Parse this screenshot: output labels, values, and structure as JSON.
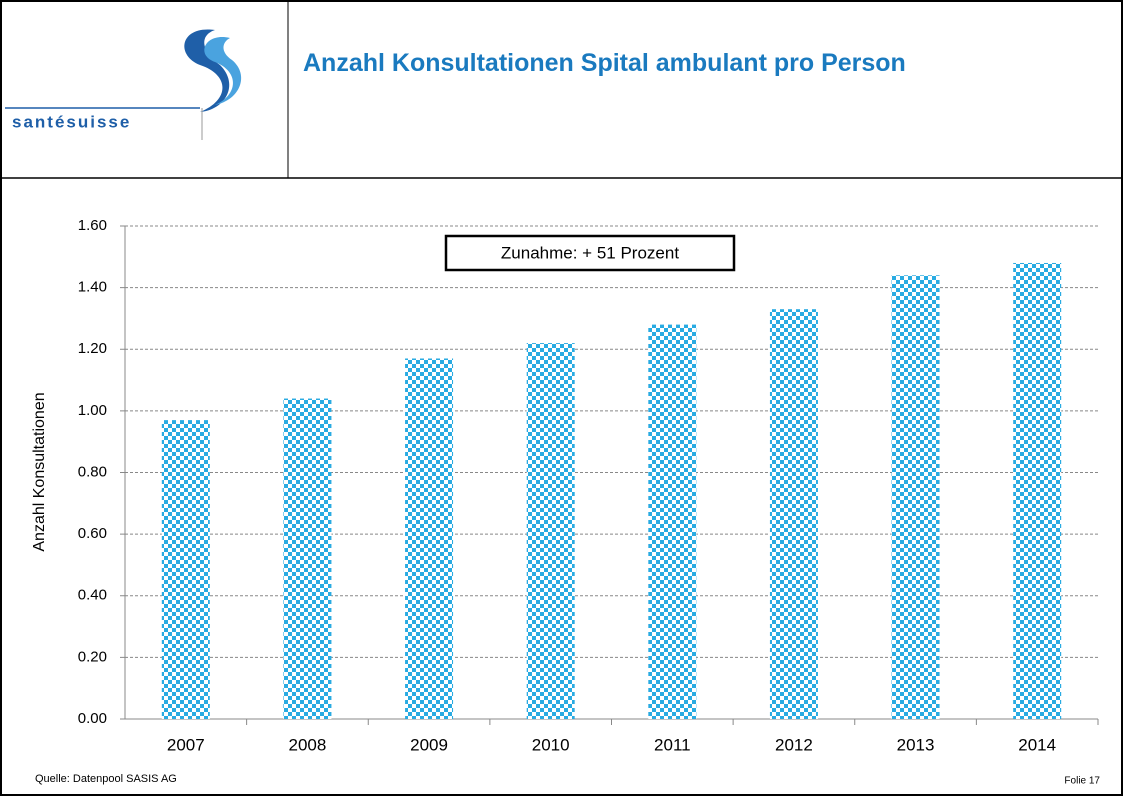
{
  "header": {
    "logo_text": "santésuisse",
    "title": "Anzahl Konsultationen Spital ambulant pro Person"
  },
  "chart_data": {
    "type": "bar",
    "y_label": "Anzahl Konsultationen",
    "annotation": "Zunahme: + 51 Prozent",
    "categories": [
      "2007",
      "2008",
      "2009",
      "2010",
      "2011",
      "2012",
      "2013",
      "2014"
    ],
    "values": [
      0.97,
      1.04,
      1.17,
      1.22,
      1.28,
      1.33,
      1.44,
      1.48
    ],
    "color": "#29abe2",
    "ylim": [
      0,
      1.6
    ],
    "yticks": [
      {
        "value": 0,
        "label": "0.00"
      },
      {
        "value": 0.2,
        "label": "0.20"
      },
      {
        "value": 0.4,
        "label": "0.40"
      },
      {
        "value": 0.6,
        "label": "0.60"
      },
      {
        "value": 0.8,
        "label": "0.80"
      },
      {
        "value": 1.0,
        "label": "1.00"
      },
      {
        "value": 1.2,
        "label": "1.20"
      },
      {
        "value": 1.4,
        "label": "1.40"
      },
      {
        "value": 1.6,
        "label": "1.60"
      }
    ],
    "grid": true
  },
  "footer": {
    "source": "Quelle: Datenpool SASIS AG",
    "slide": "Folie 17"
  }
}
